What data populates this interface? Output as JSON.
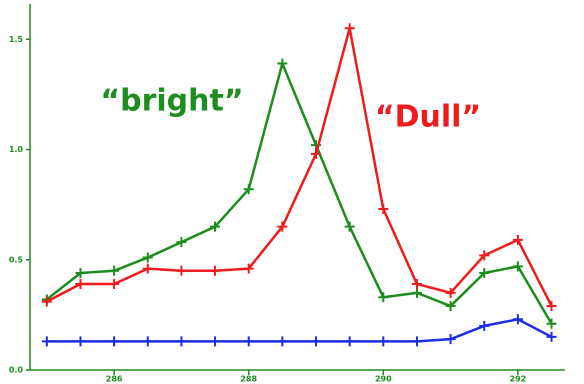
{
  "chart_data": {
    "type": "line",
    "annotations": [
      "“bright”",
      "“Dull”"
    ],
    "annotation_colors": [
      "#1e8c1e",
      "#ee1c1c"
    ],
    "x": [
      285,
      285.5,
      286,
      286.5,
      287,
      287.5,
      288,
      288.5,
      289,
      289.5,
      290,
      290.5,
      291,
      291.5,
      292,
      292.5
    ],
    "series": [
      {
        "color": "#1e8c1e",
        "values": [
          0.32,
          0.44,
          0.45,
          0.51,
          0.58,
          0.65,
          0.82,
          1.39,
          1.02,
          0.65,
          0.33,
          0.35,
          0.29,
          0.44,
          0.47,
          0.21
        ]
      },
      {
        "color": "#ee1c1c",
        "values": [
          0.31,
          0.39,
          0.39,
          0.46,
          0.45,
          0.45,
          0.46,
          0.65,
          0.98,
          1.55,
          0.73,
          0.39,
          0.35,
          0.52,
          0.59,
          0.29
        ]
      },
      {
        "color": "#1c2ce8",
        "values": [
          0.13,
          0.13,
          0.13,
          0.13,
          0.13,
          0.13,
          0.13,
          0.13,
          0.13,
          0.13,
          0.13,
          0.13,
          0.14,
          0.2,
          0.23,
          0.15
        ]
      }
    ],
    "xlim": [
      284.75,
      292.7
    ],
    "ylim": [
      0,
      1.66
    ],
    "xticks": [
      286,
      288,
      290,
      292
    ],
    "yticks": [
      {
        "value": 0,
        "label": "0.0"
      },
      0.5,
      {
        "value": 1,
        "label": "1.0"
      },
      1.5
    ]
  }
}
